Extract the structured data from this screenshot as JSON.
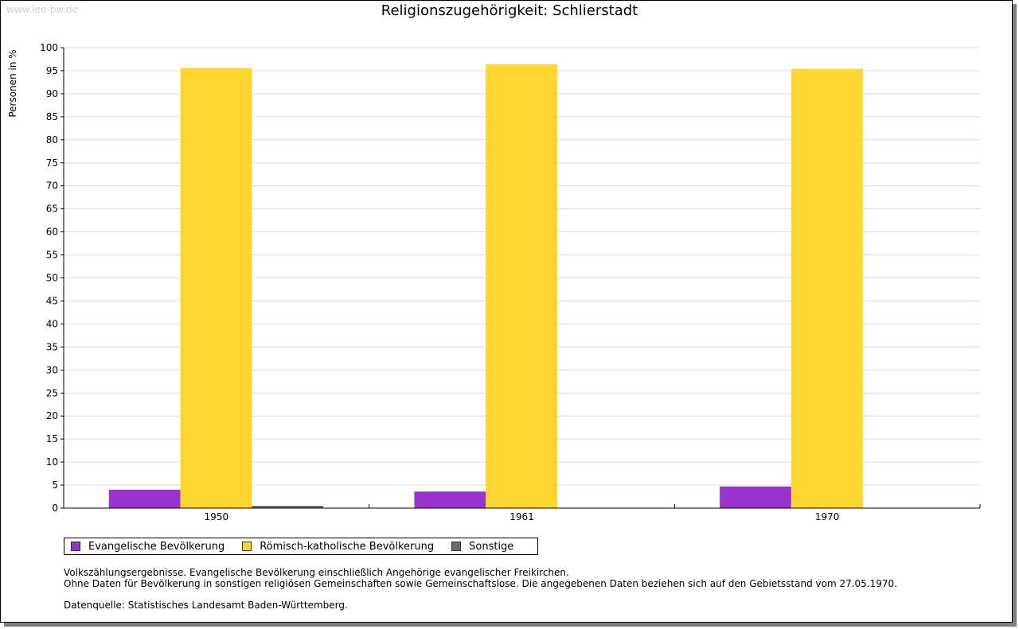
{
  "watermark": "www.leo-bw.de",
  "chart_data": {
    "type": "bar",
    "title": "Religionszugehörigkeit: Schlierstadt",
    "xlabel": "",
    "ylabel": "Personen in %",
    "ylim": [
      0,
      100
    ],
    "ytick_step": 5,
    "grid": true,
    "legend_position": "bottom-left",
    "categories": [
      "1950",
      "1961",
      "1970"
    ],
    "series": [
      {
        "name": "Evangelische Bevölkerung",
        "color": "#9933cc",
        "values": [
          4.0,
          3.6,
          4.7
        ]
      },
      {
        "name": "Römisch-katholische Bevölkerung",
        "color": "#fcd62f",
        "values": [
          95.6,
          96.4,
          95.4
        ]
      },
      {
        "name": "Sonstige",
        "color": "#6b6b6b",
        "values": [
          0.5,
          0,
          0
        ]
      }
    ]
  },
  "notes": {
    "line1": "Volkszählungsergebnisse. Evangelische Bevölkerung einschließlich Angehörige evangelischer Freikirchen.",
    "line2": "Ohne Daten für Bevölkerung in sonstigen religiösen Gemeinschaften sowie Gemeinschaftslose. Die angegebenen Daten beziehen sich auf den Gebietsstand vom 27.05.1970.",
    "source": "Datenquelle: Statistisches Landesamt Baden-Württemberg."
  }
}
